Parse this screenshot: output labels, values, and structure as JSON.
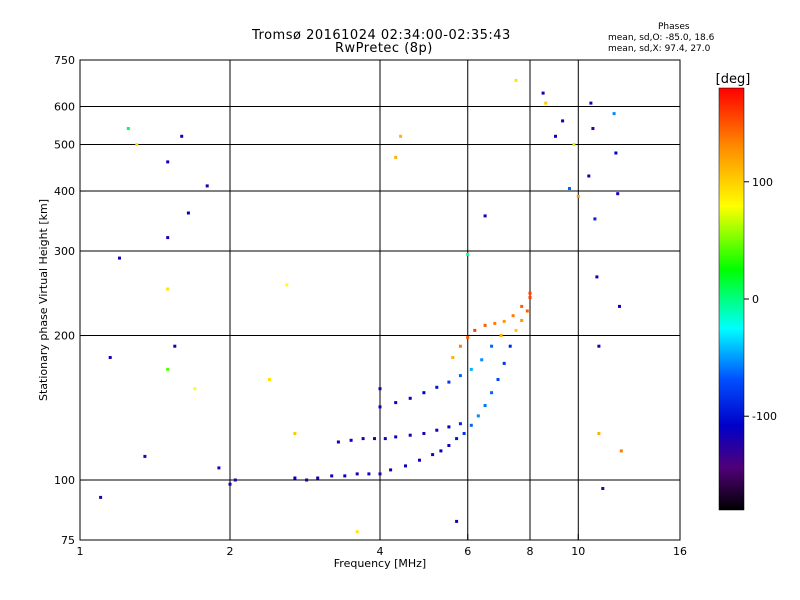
{
  "header": {
    "title_line1": "Tromsø 20161024 02:34:00-02:35:43",
    "title_line2": "RwPretec (8p)",
    "phases_label": "Phases",
    "phases_line1": "mean, sd,O: -85.0, 18.6",
    "phases_line2": "mean, sd,X:  97.4, 27.0"
  },
  "chart_data": {
    "type": "scatter",
    "xlabel": "Frequency [MHz]",
    "ylabel": "Stationary phase Virtual Height [km]",
    "x_scale": "log",
    "y_scale": "log",
    "xlim": [
      1,
      16
    ],
    "ylim": [
      75,
      750
    ],
    "x_ticks": [
      1,
      2,
      4,
      6,
      8,
      10,
      16
    ],
    "y_ticks": [
      75,
      100,
      200,
      300,
      400,
      500,
      600,
      750
    ],
    "x_gridlines": [
      2,
      4,
      6,
      8,
      10
    ],
    "y_gridlines": [
      100,
      200,
      300,
      400,
      500,
      600
    ],
    "grid": true,
    "colorbar": {
      "label": "[deg]",
      "range": [
        -180,
        180
      ],
      "ticks": [
        100,
        0,
        -100
      ],
      "colors": [
        "#ff0000",
        "#ff8c00",
        "#ffff00",
        "#00ff00",
        "#00ffff",
        "#0050ff",
        "#0000c8",
        "#500078",
        "#000000"
      ]
    },
    "series": [
      {
        "values": [
          [
            2.7,
            101,
            -95
          ],
          [
            2.85,
            100,
            -100
          ],
          [
            3.0,
            101,
            -110
          ],
          [
            3.2,
            102,
            -100
          ],
          [
            3.4,
            102,
            -95
          ],
          [
            3.6,
            103,
            -105
          ],
          [
            3.8,
            103,
            -100
          ],
          [
            4.0,
            103,
            -110
          ],
          [
            4.2,
            105,
            -100
          ],
          [
            4.5,
            107,
            -95
          ],
          [
            4.8,
            110,
            -100
          ],
          [
            5.1,
            113,
            -105
          ],
          [
            5.3,
            115,
            -90
          ],
          [
            5.5,
            118,
            -100
          ],
          [
            5.7,
            122,
            -80
          ],
          [
            5.9,
            125,
            -60
          ],
          [
            3.3,
            120,
            -100
          ],
          [
            3.5,
            121,
            -95
          ],
          [
            3.7,
            122,
            -100
          ],
          [
            3.9,
            122,
            -110
          ],
          [
            4.1,
            122,
            -100
          ],
          [
            4.3,
            123,
            -95
          ],
          [
            4.6,
            124,
            -100
          ],
          [
            4.9,
            125,
            -105
          ],
          [
            5.2,
            127,
            -95
          ],
          [
            5.5,
            129,
            -90
          ],
          [
            5.8,
            131,
            -70
          ],
          [
            4.0,
            142,
            -100
          ],
          [
            4.3,
            145,
            -100
          ],
          [
            4.6,
            148,
            -95
          ],
          [
            4.9,
            152,
            -90
          ],
          [
            5.2,
            156,
            -80
          ],
          [
            5.5,
            160,
            -60
          ],
          [
            5.8,
            165,
            -40
          ],
          [
            6.1,
            170,
            -20
          ],
          [
            6.4,
            178,
            -30
          ],
          [
            6.7,
            190,
            -40
          ],
          [
            7.0,
            200,
            120
          ],
          [
            6.1,
            130,
            -40
          ],
          [
            6.3,
            136,
            -30
          ],
          [
            6.5,
            143,
            -35
          ],
          [
            6.7,
            152,
            -40
          ],
          [
            6.9,
            162,
            -50
          ],
          [
            7.1,
            175,
            -60
          ],
          [
            7.3,
            190,
            -70
          ],
          [
            7.5,
            205,
            110
          ],
          [
            7.7,
            215,
            130
          ],
          [
            7.9,
            225,
            150
          ],
          [
            8.0,
            240,
            160
          ],
          [
            5.6,
            180,
            120
          ],
          [
            5.8,
            190,
            140
          ],
          [
            6.0,
            198,
            150
          ],
          [
            6.2,
            205,
            160
          ],
          [
            6.5,
            210,
            150
          ],
          [
            6.8,
            212,
            140
          ],
          [
            7.1,
            214,
            130
          ],
          [
            7.4,
            220,
            140
          ],
          [
            7.7,
            230,
            150
          ],
          [
            8.0,
            245,
            160
          ]
        ]
      },
      {
        "values": [
          [
            1.1,
            92,
            -110
          ],
          [
            1.15,
            180,
            -100
          ],
          [
            1.2,
            290,
            -100
          ],
          [
            1.25,
            540,
            30
          ],
          [
            1.3,
            500,
            100
          ],
          [
            1.35,
            112,
            -110
          ],
          [
            1.5,
            170,
            60
          ],
          [
            1.5,
            320,
            -100
          ],
          [
            1.5,
            460,
            -100
          ],
          [
            1.5,
            250,
            100
          ],
          [
            1.55,
            190,
            -100
          ],
          [
            1.6,
            520,
            -100
          ],
          [
            1.65,
            360,
            -90
          ],
          [
            1.7,
            155,
            90
          ],
          [
            1.8,
            410,
            -100
          ],
          [
            1.9,
            106,
            -110
          ],
          [
            2.0,
            98,
            -100
          ],
          [
            2.05,
            100,
            -110
          ],
          [
            2.4,
            162,
            100
          ],
          [
            2.6,
            255,
            90
          ],
          [
            2.7,
            125,
            110
          ],
          [
            3.6,
            78,
            100
          ],
          [
            4.0,
            155,
            -100
          ],
          [
            4.3,
            470,
            120
          ],
          [
            4.4,
            520,
            120
          ],
          [
            5.7,
            82,
            -100
          ],
          [
            6.0,
            295,
            20
          ],
          [
            6.5,
            355,
            -100
          ],
          [
            7.5,
            680,
            100
          ],
          [
            8.5,
            640,
            -100
          ],
          [
            8.6,
            610,
            110
          ],
          [
            9.0,
            520,
            -100
          ],
          [
            9.3,
            560,
            -100
          ],
          [
            9.6,
            405,
            -40
          ],
          [
            9.8,
            500,
            80
          ],
          [
            10.0,
            390,
            130
          ],
          [
            10.5,
            430,
            -100
          ],
          [
            10.6,
            610,
            -100
          ],
          [
            10.7,
            540,
            -120
          ],
          [
            10.8,
            350,
            -70
          ],
          [
            10.9,
            265,
            -100
          ],
          [
            11.0,
            190,
            -100
          ],
          [
            11.0,
            125,
            120
          ],
          [
            11.2,
            96,
            -110
          ],
          [
            11.8,
            580,
            -30
          ],
          [
            11.9,
            480,
            -90
          ],
          [
            12.0,
            395,
            -100
          ],
          [
            12.1,
            230,
            -100
          ],
          [
            12.2,
            115,
            140
          ]
        ]
      }
    ]
  }
}
